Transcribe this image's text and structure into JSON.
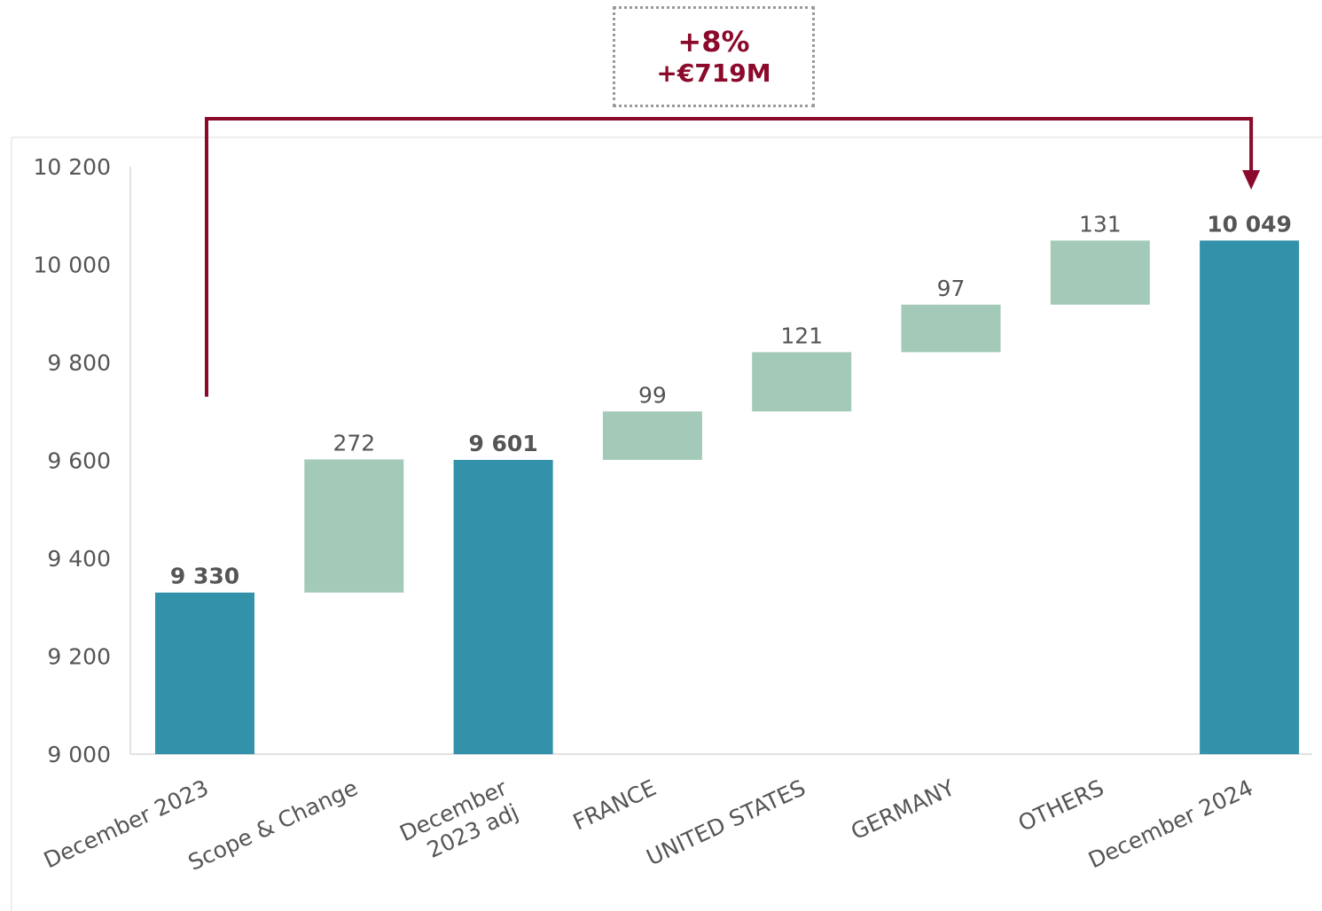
{
  "annotation": {
    "percent": "+8%",
    "amount": "+€719M",
    "color": "#8b0a2b"
  },
  "colors": {
    "total": "#3392aa",
    "delta": "#a3cab8",
    "text": "#555555",
    "axis": "#d9d9d9",
    "arrow": "#8b0a2b"
  },
  "chart_data": {
    "type": "waterfall",
    "categories": [
      "December 2023",
      "Scope & Change",
      "December\n2023 adj",
      "FRANCE",
      "UNITED STATES",
      "GERMANY",
      "OTHERS",
      "December 2024"
    ],
    "kinds": [
      "total",
      "delta",
      "total",
      "delta",
      "delta",
      "delta",
      "delta",
      "total"
    ],
    "values": [
      9330,
      272,
      9601,
      99,
      121,
      97,
      131,
      10049
    ],
    "labels": [
      "9 330",
      "272",
      "9 601",
      "99",
      "121",
      "97",
      "131",
      "10 049"
    ],
    "ylim": [
      9000,
      10200
    ],
    "yticks": [
      9000,
      9200,
      9400,
      9600,
      9800,
      10000,
      10200
    ],
    "ytick_labels": [
      "9 000",
      "9 200",
      "9 400",
      "9 600",
      "9 800",
      "10 000",
      "10 200"
    ],
    "grid": false
  }
}
